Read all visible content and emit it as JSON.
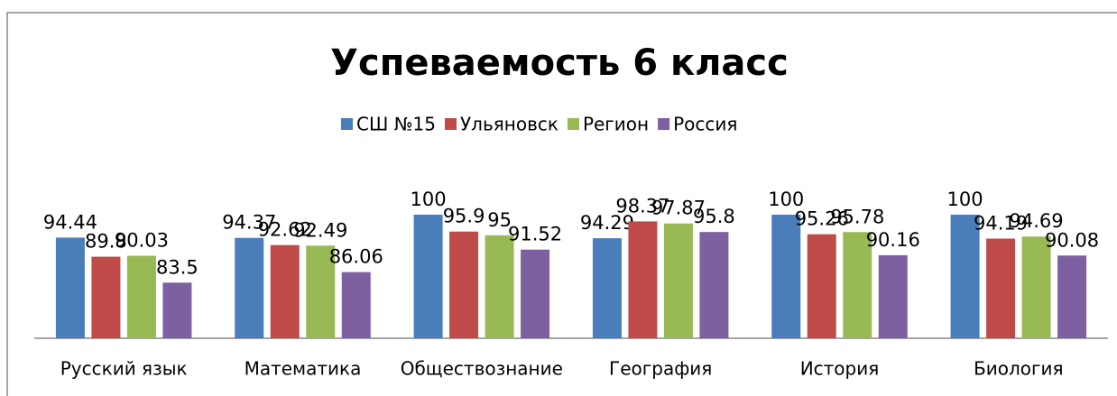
{
  "chart_data": {
    "type": "bar",
    "title": "Успеваемость 6 класс",
    "categories": [
      "Русский язык",
      "Математика",
      "Обществознание",
      "География",
      "История",
      "Биология"
    ],
    "series": [
      {
        "name": "СШ №15",
        "color": "#4a7ebb",
        "values": [
          94.44,
          94.37,
          100,
          94.29,
          100,
          100
        ]
      },
      {
        "name": "Ульяновск",
        "color": "#be4b48",
        "values": [
          89.8,
          92.62,
          95.9,
          98.37,
          95.26,
          94.19
        ]
      },
      {
        "name": "Регион",
        "color": "#98b954",
        "values": [
          90.03,
          92.49,
          95,
          97.87,
          95.78,
          94.69
        ]
      },
      {
        "name": "Россия",
        "color": "#7d60a0",
        "values": [
          83.5,
          86.06,
          91.52,
          95.8,
          90.16,
          90.08
        ]
      }
    ],
    "ylim": [
      70,
      100
    ],
    "legend": "top"
  }
}
